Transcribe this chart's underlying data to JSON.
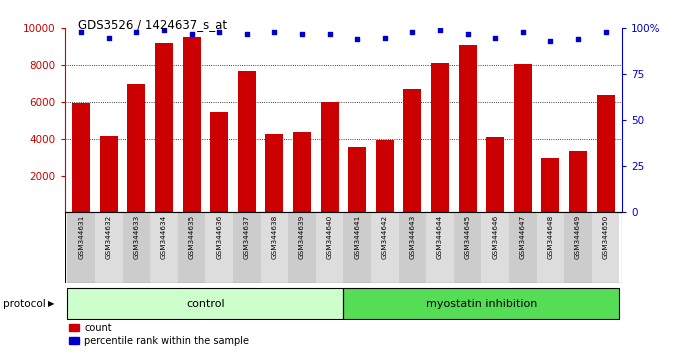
{
  "title": "GDS3526 / 1424637_s_at",
  "samples": [
    "GSM344631",
    "GSM344632",
    "GSM344633",
    "GSM344634",
    "GSM344635",
    "GSM344636",
    "GSM344637",
    "GSM344638",
    "GSM344639",
    "GSM344640",
    "GSM344641",
    "GSM344642",
    "GSM344643",
    "GSM344644",
    "GSM344645",
    "GSM344646",
    "GSM344647",
    "GSM344648",
    "GSM344649",
    "GSM344650"
  ],
  "counts": [
    5950,
    4150,
    7000,
    9200,
    9550,
    5450,
    7700,
    4250,
    4350,
    6000,
    3550,
    3950,
    6700,
    8100,
    9100,
    4100,
    8050,
    2950,
    3350,
    6400
  ],
  "percentile": [
    98,
    95,
    98,
    99,
    97,
    98,
    97,
    98,
    97,
    97,
    94,
    95,
    98,
    99,
    97,
    95,
    98,
    93,
    94,
    98
  ],
  "control_count": 10,
  "myostatin_count": 10,
  "bar_color": "#cc0000",
  "dot_color": "#0000cc",
  "control_bg": "#ccffcc",
  "myostatin_bg": "#55dd55",
  "label_bg_odd": "#cccccc",
  "label_bg_even": "#dddddd",
  "ylim_left": [
    0,
    10000
  ],
  "ylim_right": [
    0,
    100
  ],
  "yticks_left": [
    2000,
    4000,
    6000,
    8000,
    10000
  ],
  "yticks_right": [
    0,
    25,
    50,
    75,
    100
  ],
  "grid_lines": [
    4000,
    6000,
    8000
  ],
  "legend_count_label": "count",
  "legend_percentile_label": "percentile rank within the sample",
  "protocol_label": "protocol",
  "control_label": "control",
  "myostatin_label": "myostatin inhibition"
}
